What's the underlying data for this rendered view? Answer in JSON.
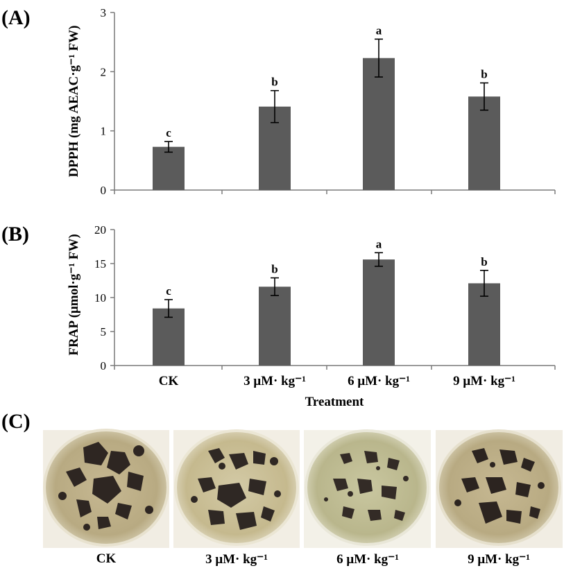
{
  "panels": {
    "a_label": "(A)",
    "b_label": "(B)",
    "c_label": "(C)"
  },
  "colors": {
    "bar": "#5b5b5b",
    "axis": "#7a7a7a"
  },
  "chart_data": [
    {
      "type": "bar",
      "panel": "(A)",
      "categories": [
        "CK",
        "3 μM· kg⁻¹",
        "6 μM· kg⁻¹",
        "9 μM· kg⁻¹"
      ],
      "values": [
        0.73,
        1.41,
        2.23,
        1.58
      ],
      "errors": [
        0.09,
        0.27,
        0.32,
        0.23
      ],
      "significance": [
        "c",
        "b",
        "a",
        "b"
      ],
      "ylabel": "DPPH (mg AEAC·g⁻¹ FW)",
      "ylim": [
        0,
        3
      ],
      "yticks": [
        "0",
        "1",
        "2",
        "3"
      ],
      "ytick_values": [
        0,
        1,
        2,
        3
      ],
      "grid": false
    },
    {
      "type": "bar",
      "panel": "(B)",
      "categories": [
        "CK",
        "3 μM· kg⁻¹",
        "6 μM· kg⁻¹",
        "9 μM· kg⁻¹"
      ],
      "values": [
        8.4,
        11.6,
        15.6,
        12.1
      ],
      "errors": [
        1.3,
        1.3,
        1.0,
        1.9
      ],
      "significance": [
        "c",
        "b",
        "a",
        "b"
      ],
      "xlabel": "Treatment",
      "ylabel": "FRAP (μmol·g⁻¹ FW)",
      "ylim": [
        0,
        20
      ],
      "yticks": [
        "0",
        "5",
        "10",
        "15",
        "20"
      ],
      "ytick_values": [
        0,
        5,
        10,
        15,
        20
      ],
      "grid": false
    }
  ],
  "photos": {
    "labels": [
      "CK",
      "3 μM· kg⁻¹",
      "6 μM· kg⁻¹",
      "9 μM· kg⁻¹"
    ]
  }
}
